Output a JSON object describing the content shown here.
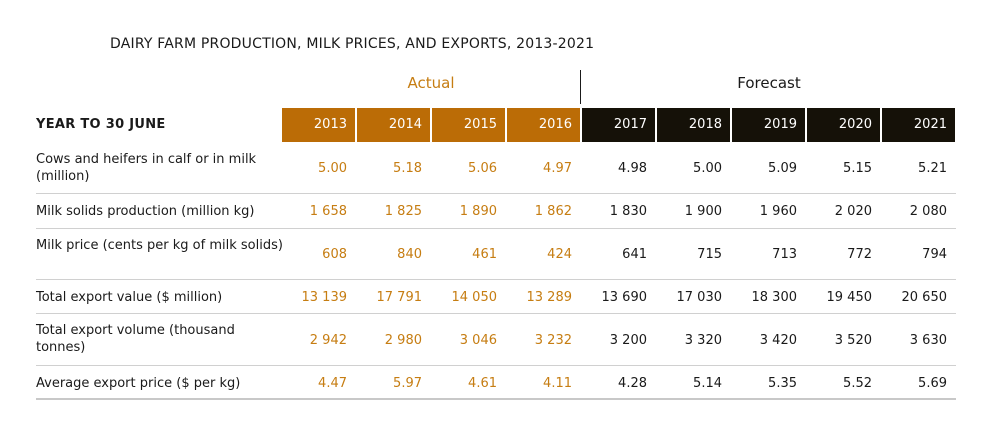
{
  "title": "DAIRY FARM PRODUCTION, MILK PRICES, AND EXPORTS, 2013-2021",
  "groups": {
    "actual": "Actual",
    "forecast": "Forecast"
  },
  "header": {
    "label": "YEAR TO 30 JUNE",
    "years": [
      "2013",
      "2014",
      "2015",
      "2016",
      "2017",
      "2018",
      "2019",
      "2020",
      "2021"
    ],
    "actual_count": 4
  },
  "colors": {
    "actual": "#bb6c06",
    "forecast": "#151108"
  },
  "rows": [
    {
      "label": "Cows and heifers in calf or in milk (million)",
      "values": [
        "5.00",
        "5.18",
        "5.06",
        "4.97",
        "4.98",
        "5.00",
        "5.09",
        "5.15",
        "5.21"
      ]
    },
    {
      "label": "Milk solids production (million kg)",
      "values": [
        "1 658",
        "1 825",
        "1 890",
        "1 862",
        "1 830",
        "1 900",
        "1 960",
        "2 020",
        "2 080"
      ]
    },
    {
      "label": "Milk price (cents per kg of milk solids)",
      "values": [
        "608",
        "840",
        "461",
        "424",
        "641",
        "715",
        "713",
        "772",
        "794"
      ]
    },
    {
      "label": "Total export value ($ million)",
      "values": [
        "13 139",
        "17 791",
        "14 050",
        "13 289",
        "13 690",
        "17 030",
        "18 300",
        "19 450",
        "20 650"
      ]
    },
    {
      "label": "Total export volume (thousand tonnes)",
      "values": [
        "2 942",
        "2 980",
        "3 046",
        "3 232",
        "3 200",
        "3 320",
        "3 420",
        "3 520",
        "3 630"
      ]
    },
    {
      "label": "Average export price ($ per kg)",
      "values": [
        "4.47",
        "5.97",
        "4.61",
        "4.11",
        "4.28",
        "5.14",
        "5.35",
        "5.52",
        "5.69"
      ]
    }
  ]
}
